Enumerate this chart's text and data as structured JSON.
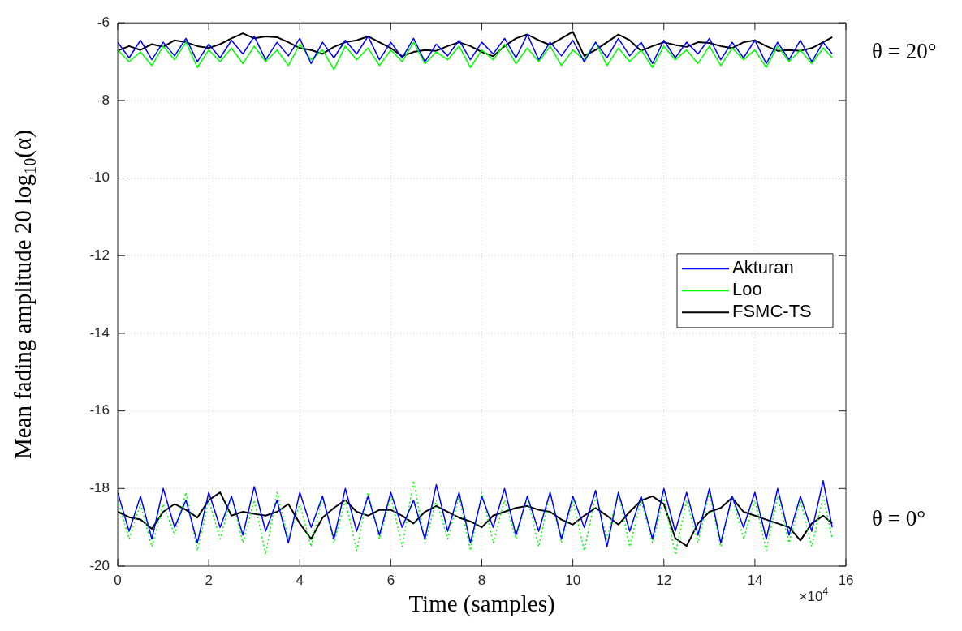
{
  "chart_data": {
    "type": "line",
    "xlabel": "Time (samples)",
    "ylabel": "Mean fading amplitude 20 log$_{10}$(α)",
    "x": [
      0,
      0.25,
      0.5,
      0.75,
      1,
      1.25,
      1.5,
      1.75,
      2,
      2.25,
      2.5,
      2.75,
      3,
      3.25,
      3.5,
      3.75,
      4,
      4.25,
      4.5,
      4.75,
      5,
      5.25,
      5.5,
      5.75,
      6,
      6.25,
      6.5,
      6.75,
      7,
      7.25,
      7.5,
      7.75,
      8,
      8.25,
      8.5,
      8.75,
      9,
      9.25,
      9.5,
      9.75,
      10,
      10.25,
      10.5,
      10.75,
      11,
      11.25,
      11.5,
      11.75,
      12,
      12.25,
      12.5,
      12.75,
      13,
      13.25,
      13.5,
      13.75,
      14,
      14.25,
      14.5,
      14.75,
      15,
      15.25,
      15.5,
      15.7
    ],
    "xlim": [
      0,
      16
    ],
    "xticks": [
      0,
      2,
      4,
      6,
      8,
      10,
      12,
      14,
      16
    ],
    "ylim": [
      -20,
      -6
    ],
    "yticks": [
      -20,
      -18,
      -16,
      -14,
      -12,
      -10,
      -8,
      -6
    ],
    "grid": true,
    "legend": "right",
    "marker": "none",
    "annotations": [
      "θ = 20°",
      "θ = 0°",
      "×10$^{4}$"
    ],
    "series": [
      {
        "name": "Akturan",
        "color": "#0000ff",
        "values": [
          -6.5,
          -6.9,
          -6.45,
          -6.95,
          -6.5,
          -6.85,
          -6.4,
          -7.0,
          -6.55,
          -6.9,
          -6.45,
          -6.8,
          -6.35,
          -6.95,
          -6.5,
          -6.85,
          -6.4,
          -7.05,
          -6.5,
          -6.9,
          -6.45,
          -6.8,
          -6.35,
          -6.95,
          -6.5,
          -6.9,
          -6.4,
          -7.0,
          -6.55,
          -6.85,
          -6.45,
          -6.95,
          -6.5,
          -6.8,
          -6.4,
          -6.9,
          -6.3,
          -6.95,
          -6.5,
          -6.85,
          -6.45,
          -7.0,
          -6.5,
          -6.9,
          -6.4,
          -6.85,
          -6.5,
          -7.05,
          -6.45,
          -6.9,
          -6.5,
          -6.8,
          -6.4,
          -6.95,
          -6.5,
          -6.9,
          -6.45,
          -7.05,
          -6.5,
          -6.95,
          -6.45,
          -7.0,
          -6.5,
          -6.8
        ]
      },
      {
        "name": "Loo",
        "color": "#00ff00",
        "values": [
          -6.7,
          -7.0,
          -6.75,
          -7.1,
          -6.6,
          -6.95,
          -6.5,
          -7.15,
          -6.7,
          -7.0,
          -6.65,
          -7.05,
          -6.6,
          -7.0,
          -6.7,
          -7.1,
          -6.55,
          -6.95,
          -6.7,
          -7.2,
          -6.6,
          -6.95,
          -6.65,
          -7.1,
          -6.7,
          -7.0,
          -6.5,
          -7.05,
          -6.75,
          -6.95,
          -6.6,
          -7.15,
          -6.7,
          -6.95,
          -6.55,
          -7.05,
          -6.65,
          -7.0,
          -6.6,
          -7.1,
          -6.7,
          -6.95,
          -6.5,
          -7.1,
          -6.65,
          -7.0,
          -6.7,
          -7.15,
          -6.6,
          -6.95,
          -6.7,
          -7.05,
          -6.6,
          -7.1,
          -6.65,
          -6.95,
          -6.7,
          -7.15,
          -6.6,
          -7.0,
          -6.7,
          -7.05,
          -6.65,
          -6.9
        ]
      },
      {
        "name": "FSMC-TS",
        "color": "#000000",
        "values": [
          -6.72,
          -6.6,
          -6.7,
          -6.55,
          -6.62,
          -6.45,
          -6.5,
          -6.6,
          -6.65,
          -6.55,
          -6.4,
          -6.27,
          -6.4,
          -6.35,
          -6.37,
          -6.5,
          -6.65,
          -6.7,
          -6.8,
          -6.62,
          -6.5,
          -6.45,
          -6.35,
          -6.5,
          -6.65,
          -6.86,
          -6.75,
          -6.7,
          -6.72,
          -6.6,
          -6.5,
          -6.6,
          -6.75,
          -6.86,
          -6.6,
          -6.4,
          -6.3,
          -6.45,
          -6.57,
          -6.4,
          -6.23,
          -6.85,
          -6.7,
          -6.5,
          -6.3,
          -6.45,
          -6.72,
          -6.6,
          -6.5,
          -6.57,
          -6.62,
          -6.5,
          -6.52,
          -6.6,
          -6.65,
          -6.5,
          -6.45,
          -6.6,
          -6.72,
          -6.7,
          -6.72,
          -6.65,
          -6.5,
          -6.37
        ]
      },
      {
        "color": "#0000ff",
        "values": [
          -18.1,
          -19.1,
          -18.2,
          -19.3,
          -18.0,
          -19.0,
          -18.3,
          -19.4,
          -18.1,
          -19.0,
          -18.2,
          -19.2,
          -17.95,
          -19.1,
          -18.3,
          -19.4,
          -18.1,
          -19.0,
          -18.2,
          -19.3,
          -18.0,
          -19.1,
          -18.2,
          -19.2,
          -18.1,
          -19.0,
          -18.3,
          -19.3,
          -17.9,
          -19.1,
          -18.1,
          -19.4,
          -18.2,
          -19.0,
          -18.0,
          -19.2,
          -18.2,
          -19.1,
          -18.1,
          -19.3,
          -18.2,
          -19.0,
          -18.05,
          -19.5,
          -18.1,
          -19.1,
          -18.2,
          -19.3,
          -18.0,
          -19.1,
          -18.1,
          -19.2,
          -18.0,
          -19.4,
          -18.2,
          -19.0,
          -18.1,
          -19.3,
          -18.0,
          -19.2,
          -18.2,
          -19.1,
          -17.8,
          -19.0
        ]
      },
      {
        "color": "#00ff00",
        "line_style": "dotted",
        "values": [
          -18.3,
          -19.3,
          -18.4,
          -19.5,
          -18.4,
          -19.2,
          -18.1,
          -19.6,
          -18.3,
          -19.3,
          -18.2,
          -19.4,
          -18.3,
          -19.7,
          -18.1,
          -19.3,
          -18.4,
          -19.5,
          -18.2,
          -19.4,
          -18.3,
          -19.6,
          -18.1,
          -19.3,
          -18.2,
          -19.5,
          -17.8,
          -19.4,
          -18.3,
          -19.3,
          -18.2,
          -19.6,
          -18.1,
          -19.4,
          -18.3,
          -19.3,
          -18.2,
          -19.5,
          -18.1,
          -19.4,
          -18.3,
          -19.6,
          -18.2,
          -19.3,
          -18.1,
          -19.5,
          -18.3,
          -19.4,
          -18.2,
          -19.7,
          -18.3,
          -19.4,
          -18.1,
          -19.5,
          -18.2,
          -19.3,
          -18.3,
          -19.6,
          -18.2,
          -19.4,
          -18.3,
          -19.5,
          -18.2,
          -19.3
        ]
      },
      {
        "color": "#000000",
        "values": [
          -18.6,
          -18.74,
          -18.8,
          -19.04,
          -18.6,
          -18.4,
          -18.55,
          -18.75,
          -18.3,
          -18.1,
          -18.7,
          -18.6,
          -18.65,
          -18.7,
          -18.6,
          -18.4,
          -18.9,
          -19.3,
          -18.75,
          -18.5,
          -18.3,
          -18.6,
          -18.7,
          -18.55,
          -18.55,
          -18.7,
          -18.9,
          -18.6,
          -18.45,
          -18.6,
          -18.75,
          -18.85,
          -19.0,
          -18.7,
          -18.6,
          -18.5,
          -18.45,
          -18.55,
          -18.6,
          -18.8,
          -18.93,
          -18.7,
          -18.5,
          -18.7,
          -18.93,
          -18.6,
          -18.31,
          -18.2,
          -18.4,
          -19.28,
          -19.48,
          -18.9,
          -18.6,
          -18.5,
          -18.24,
          -18.6,
          -18.7,
          -18.8,
          -18.9,
          -19.0,
          -19.34,
          -18.9,
          -18.7,
          -18.9
        ]
      }
    ]
  }
}
